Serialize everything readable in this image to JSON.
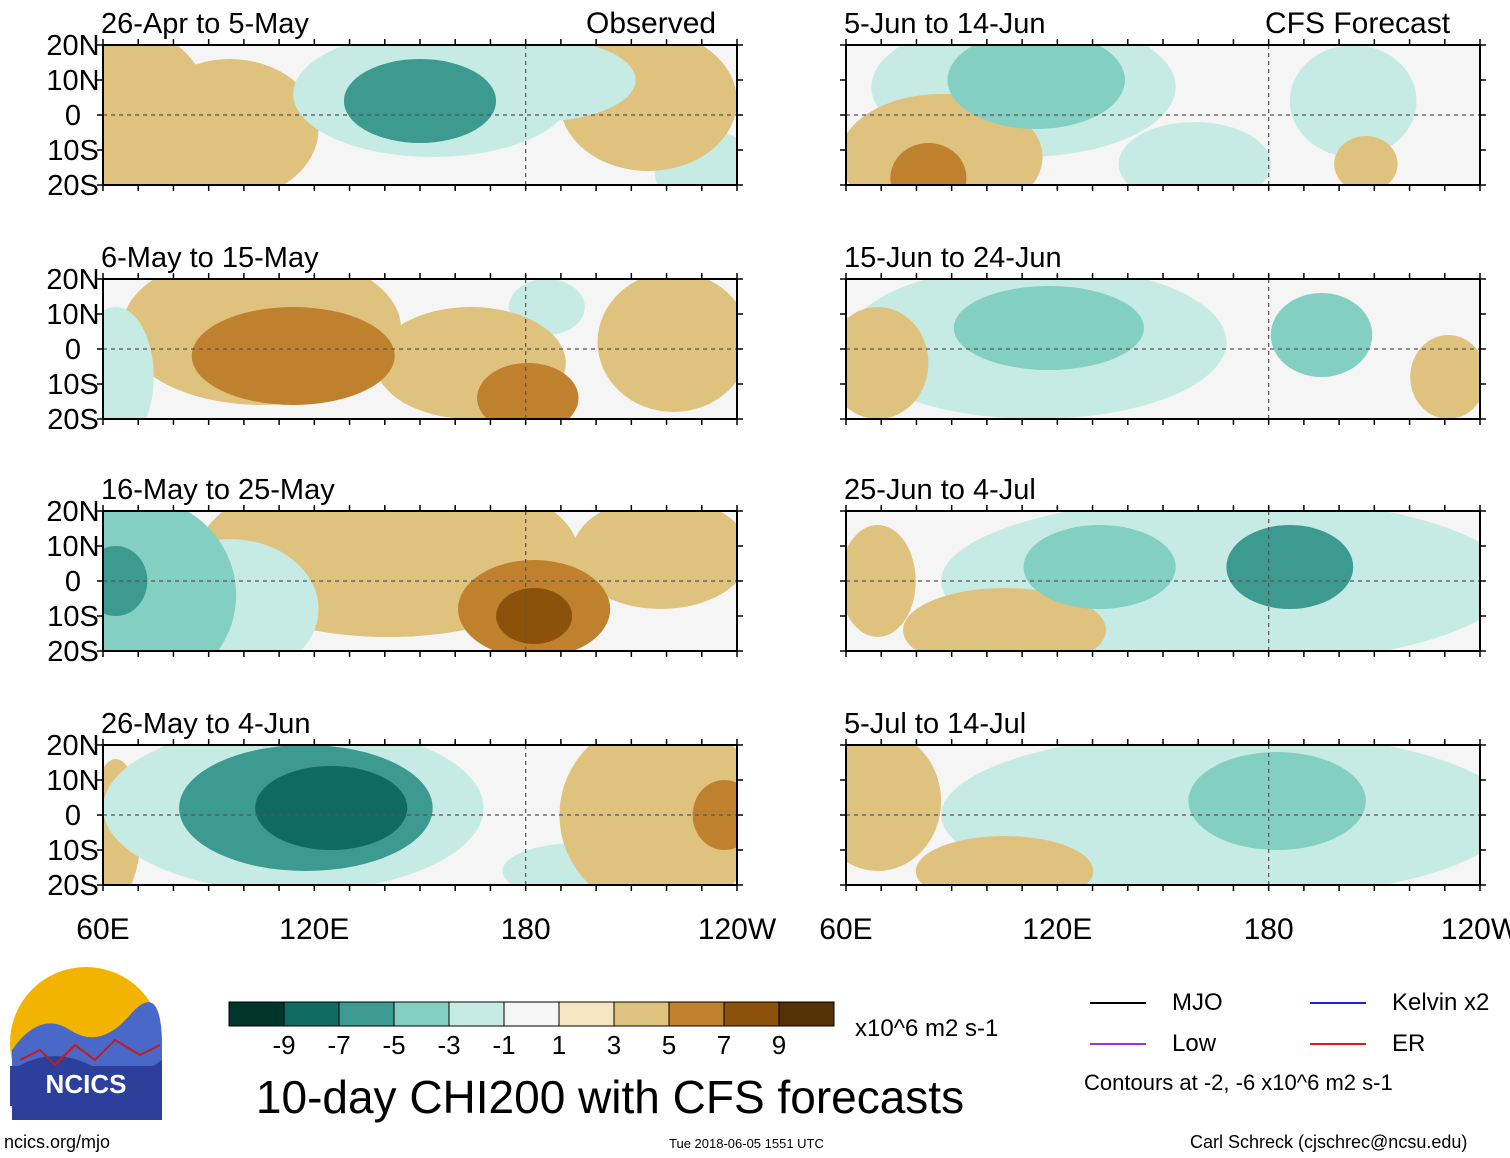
{
  "header": {
    "left_label": "Observed",
    "right_label": "CFS Forecast"
  },
  "chart_data": {
    "type": "heatmap",
    "title": "10-day CHI200 with CFS forecasts",
    "variable": "CHI200",
    "units": "x10^6 m2 s-1",
    "x_ticks": [
      "60E",
      "120E",
      "180",
      "120W"
    ],
    "y_ticks": [
      "20N",
      "10N",
      "0",
      "10S",
      "20S"
    ],
    "xlim": [
      "60E",
      "120W"
    ],
    "ylim": [
      "20S",
      "20N"
    ],
    "colorbar": {
      "ticks": [
        "-9",
        "-7",
        "-5",
        "-3",
        "-1",
        "1",
        "3",
        "5",
        "7",
        "9"
      ],
      "colors": [
        "#01352c",
        "#0e6a62",
        "#3c9a91",
        "#83cfc1",
        "#c6ebe4",
        "#f5f5f5",
        "#f5e6c1",
        "#dfc27d",
        "#bf812d",
        "#8c510a",
        "#553107"
      ]
    },
    "panels": [
      {
        "period": "26-Apr to 5-May",
        "source": "Observed"
      },
      {
        "period": "6-May to 15-May",
        "source": "Observed"
      },
      {
        "period": "16-May to 25-May",
        "source": "Observed"
      },
      {
        "period": "26-May to 4-Jun",
        "source": "Observed"
      },
      {
        "period": "5-Jun to 14-Jun",
        "source": "CFS Forecast"
      },
      {
        "period": "15-Jun to 24-Jun",
        "source": "CFS Forecast"
      },
      {
        "period": "25-Jun to 4-Jul",
        "source": "CFS Forecast"
      },
      {
        "period": "5-Jul to 14-Jul",
        "source": "CFS Forecast"
      }
    ],
    "contour_legend": [
      {
        "label": "MJO",
        "color": "#000000"
      },
      {
        "label": "Kelvin x2",
        "color": "#1f1fd6"
      },
      {
        "label": "Low",
        "color": "#9b32e8"
      },
      {
        "label": "ER",
        "color": "#dd1c1c"
      }
    ],
    "contour_note": "Contours at -2, -6 x10^6 m2 s-1"
  },
  "logo": {
    "text": "NCICS"
  },
  "footer": {
    "url": "ncics.org/mjo",
    "timestamp": "Tue 2018-06-05 1551 UTC",
    "credit": "Carl Schreck (cjschrec@ncsu.edu)"
  }
}
